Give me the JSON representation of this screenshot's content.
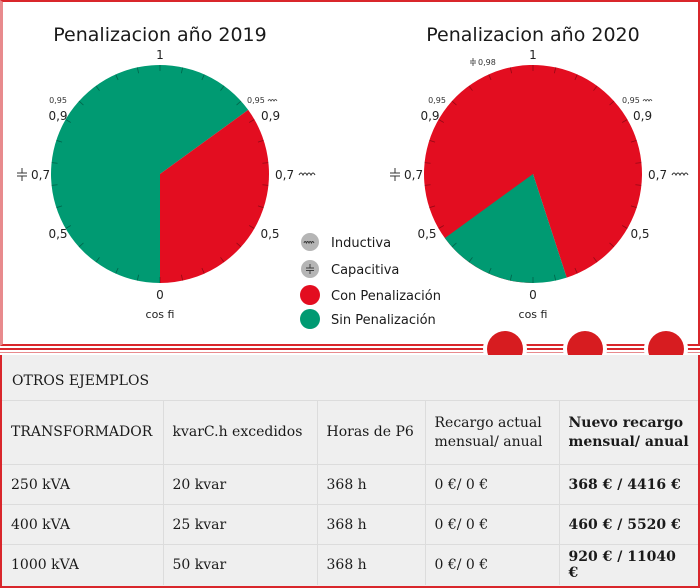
{
  "chart_data": [
    {
      "type": "pie",
      "title": "Penalizacion año 2019",
      "axis_label": "cos fi",
      "scale_labels": {
        "top": "1",
        "upper_left_small": "0,95",
        "upper_left": "0,9",
        "left": "0,7",
        "lower_left": "0,5",
        "bottom": "0",
        "upper_right_small": "0,95",
        "upper_right": "0,9",
        "right": "0,7",
        "lower_right": "0,5"
      },
      "slices": [
        {
          "name": "Sin Penalización",
          "from_cosfi": "0 (capacitiva)",
          "to_cosfi": "0,95 (inductiva)",
          "degrees": 234,
          "color": "#009a72"
        },
        {
          "name": "Con Penalización",
          "from_cosfi": "0,95 (inductiva)",
          "to_cosfi": "0",
          "degrees": 126,
          "color": "#e30d20"
        }
      ]
    },
    {
      "type": "pie",
      "title": "Penalizacion año 2020",
      "axis_label": "cos fi",
      "scale_labels": {
        "top": "1",
        "upper_left_extra": "0,98",
        "upper_left_small": "0,95",
        "upper_left": "0,9",
        "left": "0,7",
        "lower_left": "0,5",
        "bottom": "0",
        "upper_right_small": "0,95",
        "upper_right": "0,9",
        "right": "0,7",
        "lower_right": "0,5"
      },
      "slices": [
        {
          "name": "Con Penalización",
          "from_cosfi": "0 (capacitiva)",
          "to_cosfi": "0,98 (capacitiva)",
          "degrees": 342,
          "color": "#e30d20"
        },
        {
          "name": "Sin Penalización",
          "from_cosfi": "0,98 (capacitiva)",
          "to_cosfi": "0,95 (inductiva)",
          "degrees": 72,
          "color": "#009a72"
        }
      ]
    }
  ],
  "legend": [
    {
      "label": "Inductiva",
      "icon": "inductor-icon",
      "color": "#b5b5b5"
    },
    {
      "label": "Capacitiva",
      "icon": "capacitor-icon",
      "color": "#b5b5b5"
    },
    {
      "label": "Con Penalización",
      "icon": "red-dot",
      "color": "#e30d20"
    },
    {
      "label": "Sin Penalización",
      "icon": "green-dot",
      "color": "#009a72"
    }
  ],
  "colors": {
    "accent_red": "#d9262b",
    "penalty": "#e30d20",
    "no_penalty": "#009a72",
    "table_bg": "#efefef"
  },
  "table": {
    "title": "OTROS EJEMPLOS",
    "headers": [
      "TRANSFORMADOR",
      "kvarC.h excedidos",
      "Horas de P6",
      "Recargo actual mensual/ anual",
      "Nuevo recargo mensual/ anual"
    ],
    "rows": [
      [
        "250 kVA",
        "20 kvar",
        "368 h",
        "0 €/ 0 €",
        "368 € / 4416 €"
      ],
      [
        "400 kVA",
        "25 kvar",
        "368 h",
        "0 €/ 0 €",
        "460 € / 5520 €"
      ],
      [
        "1000 kVA",
        "50 kvar",
        "368 h",
        "0 €/ 0 €",
        "920 € / 11040 €"
      ]
    ]
  }
}
